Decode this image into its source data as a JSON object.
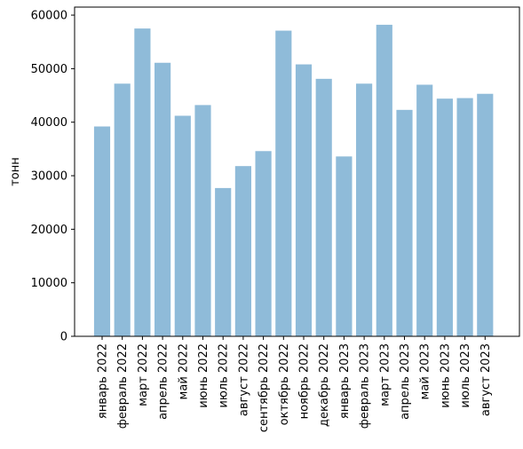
{
  "chart_data": {
    "type": "bar",
    "ylabel": "тонн",
    "xlabel": "",
    "title": "",
    "ylim": [
      0,
      61500
    ],
    "yticks": [
      0,
      10000,
      20000,
      30000,
      40000,
      50000,
      60000
    ],
    "bar_color": "#8fbbd9",
    "grid": false,
    "categories": [
      "январь 2022",
      "февраль 2022",
      "март 2022",
      "апрель 2022",
      "май 2022",
      "июнь 2022",
      "июль 2022",
      "август 2022",
      "сентябрь 2022",
      "октябрь 2022",
      "ноябрь 2022",
      "декабрь 2022",
      "январь 2023",
      "февраль 2023",
      "март 2023",
      "апрель 2023",
      "май 2023",
      "июнь 2023",
      "июль 2023",
      "август 2023"
    ],
    "values": [
      39200,
      47200,
      57500,
      51100,
      41200,
      43200,
      27700,
      31800,
      34600,
      57100,
      50800,
      48100,
      33600,
      47200,
      58200,
      42300,
      47000,
      44400,
      44500,
      45300
    ]
  }
}
